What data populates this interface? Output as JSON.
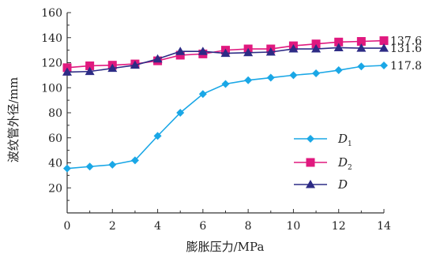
{
  "chart_data": {
    "type": "line",
    "xlabel": "膨胀压力/MPa",
    "ylabel": "波纹管外径/mm",
    "xlim": [
      0,
      14
    ],
    "ylim": [
      0,
      160
    ],
    "xticks": [
      0,
      2,
      4,
      6,
      8,
      10,
      12,
      14
    ],
    "yticks": [
      20,
      40,
      60,
      80,
      100,
      120,
      140,
      160
    ],
    "x": [
      0,
      1,
      2,
      3,
      4,
      5,
      6,
      7,
      8,
      9,
      10,
      11,
      12,
      13,
      14
    ],
    "grid": false,
    "legend_position": "center-right",
    "series": [
      {
        "name": "D",
        "name_sub": "1",
        "color": "#1aa7e6",
        "marker": "diamond",
        "values": [
          35.5,
          37,
          38.5,
          42,
          61.5,
          80,
          95,
          103,
          106,
          108,
          110,
          111.5,
          114,
          117,
          117.8
        ],
        "end_label": "117.8"
      },
      {
        "name": "D",
        "name_sub": "2",
        "color": "#e0197f",
        "marker": "square",
        "values": [
          116,
          117.5,
          118,
          119,
          121.5,
          126,
          127,
          130,
          131,
          131,
          133.5,
          135,
          136.5,
          137,
          137.6
        ],
        "end_label": "137.6"
      },
      {
        "name": "D",
        "name_sub": "",
        "color": "#2d2b85",
        "marker": "triangle",
        "values": [
          112.5,
          113,
          115.5,
          118,
          123,
          129,
          129,
          127.5,
          128,
          128.5,
          131,
          131,
          132,
          131.6,
          131.6
        ],
        "end_label": "131.6"
      }
    ]
  }
}
